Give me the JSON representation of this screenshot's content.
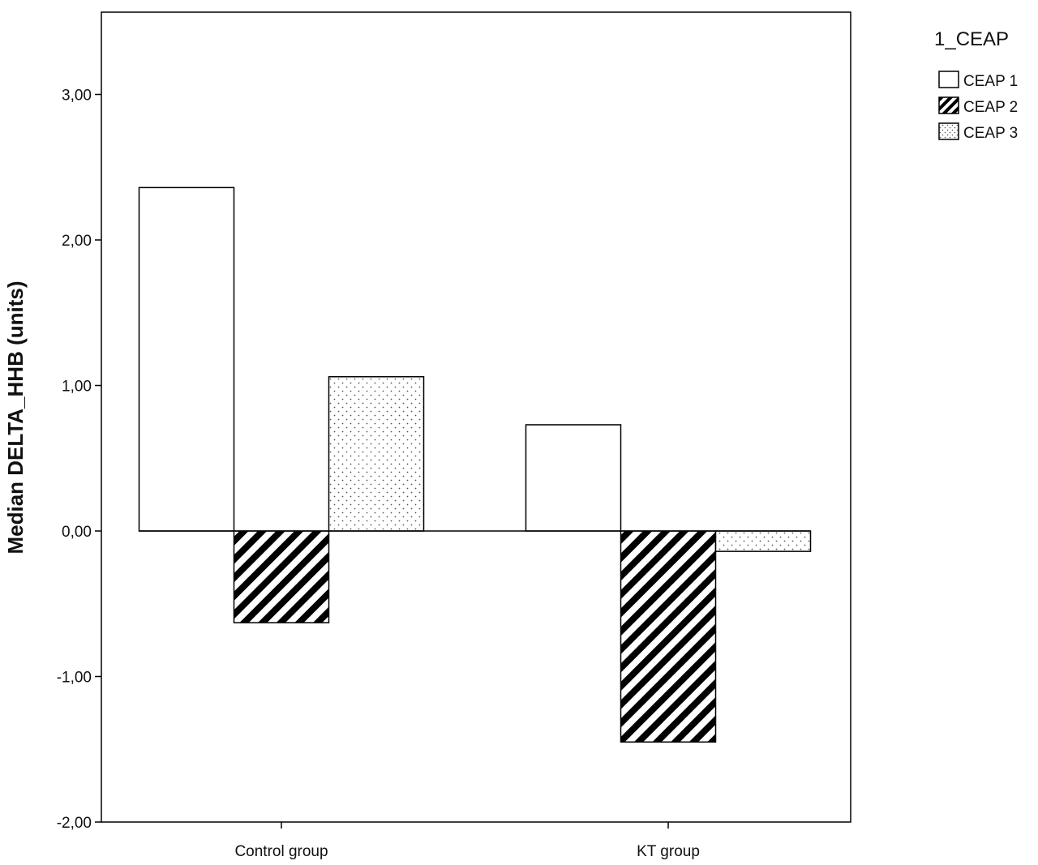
{
  "chart_data": {
    "type": "bar",
    "ylabel": "Median DELTA_HHB (units)",
    "xlabel": "",
    "categories": [
      "Control group",
      "KT group"
    ],
    "series": [
      {
        "name": "CEAP 1",
        "values": [
          2.36,
          0.73
        ],
        "pattern": "hollow"
      },
      {
        "name": "CEAP 2",
        "values": [
          -0.63,
          -1.45
        ],
        "pattern": "diagonal-hatch"
      },
      {
        "name": "CEAP 3",
        "values": [
          1.06,
          -0.14
        ],
        "pattern": "dotted"
      }
    ],
    "ylim": [
      -2.0,
      3.5
    ],
    "yticks": [
      -2,
      -1,
      0,
      1,
      2,
      3
    ],
    "ytick_labels": [
      "-2,00",
      "-1,00",
      "0,00",
      "1,00",
      "2,00",
      "3,00"
    ],
    "legend": {
      "title": "1_CEAP",
      "placement": "outside-top-right"
    },
    "grid": false,
    "colors": {
      "stroke": "#000000",
      "fill": "#ffffff"
    }
  }
}
